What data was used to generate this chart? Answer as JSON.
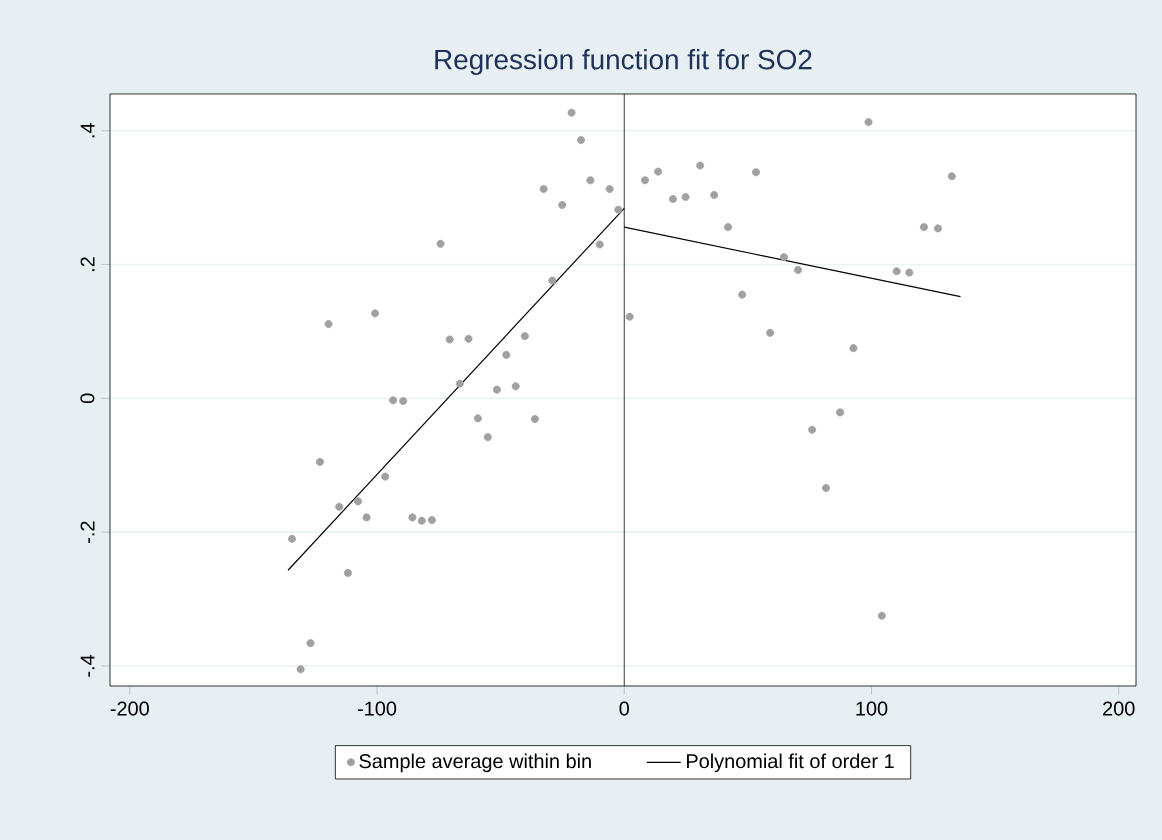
{
  "chart_data": {
    "type": "scatter",
    "title": "Regression function fit for SO2",
    "xlim": [
      -208,
      207
    ],
    "ylim": [
      -0.43,
      0.455
    ],
    "xticks": [
      -200,
      -100,
      0,
      100,
      200
    ],
    "yticks": [
      {
        "value": -0.4,
        "label": "-.4"
      },
      {
        "value": -0.2,
        "label": "-.2"
      },
      0,
      {
        "value": 0.2,
        "label": ".2"
      },
      {
        "value": 0.4,
        "label": ".4"
      }
    ],
    "grid": "y",
    "legend": "bottom",
    "ref_lines": [
      {
        "axis": "x",
        "value": 0,
        "color": "#000000"
      }
    ],
    "series": [
      {
        "name": "Sample average within bin",
        "marker": "circle",
        "color": "#a0a0a0",
        "x": [
          -134.4,
          -130.9,
          -126.9,
          -123.1,
          -119.6,
          -115.3,
          -111.8,
          -107.7,
          -104.2,
          -100.8,
          -96.7,
          -93.5,
          -89.4,
          -85.7,
          -81.9,
          -77.8,
          -74.3,
          -70.6,
          -66.5,
          -63.0,
          -59.2,
          -55.2,
          -51.5,
          -47.7,
          -43.9,
          -40.2,
          -36.1,
          -32.6,
          -29.1,
          -25.1,
          -21.3,
          -17.5,
          -13.7,
          -9.9,
          -5.9,
          -2.4,
          2.2,
          8.4,
          13.7,
          19.7,
          24.8,
          30.7,
          36.4,
          42.0,
          47.7,
          53.3,
          59.0,
          64.6,
          70.3,
          76.0,
          81.6,
          87.3,
          92.7,
          98.8,
          104.2,
          110.2,
          115.3,
          121.2,
          126.9,
          132.5
        ],
        "values": [
          -0.21,
          -0.405,
          -0.366,
          -0.095,
          0.111,
          -0.162,
          -0.261,
          -0.154,
          -0.178,
          0.127,
          -0.117,
          -0.003,
          -0.004,
          -0.178,
          -0.183,
          -0.182,
          0.231,
          0.088,
          0.022,
          0.089,
          -0.03,
          -0.058,
          0.013,
          0.065,
          0.018,
          0.093,
          -0.031,
          0.313,
          0.176,
          0.289,
          0.427,
          0.386,
          0.326,
          0.23,
          0.313,
          0.282,
          0.122,
          0.326,
          0.339,
          0.298,
          0.301,
          0.348,
          0.304,
          0.256,
          0.155,
          0.338,
          0.098,
          0.211,
          0.192,
          -0.047,
          -0.134,
          -0.021,
          0.075,
          0.413,
          -0.325,
          0.19,
          0.188,
          0.256,
          0.254,
          0.332
        ]
      },
      {
        "name": "Polynomial fit of order 1",
        "type": "line",
        "marker": "none",
        "color": "#000000",
        "x": [
          -136,
          0
        ],
        "values": [
          -0.257,
          0.284
        ]
      },
      {
        "type": "line",
        "marker": "none",
        "color": "#000000",
        "x": [
          0,
          136
        ],
        "values": [
          0.256,
          0.152
        ]
      }
    ]
  }
}
